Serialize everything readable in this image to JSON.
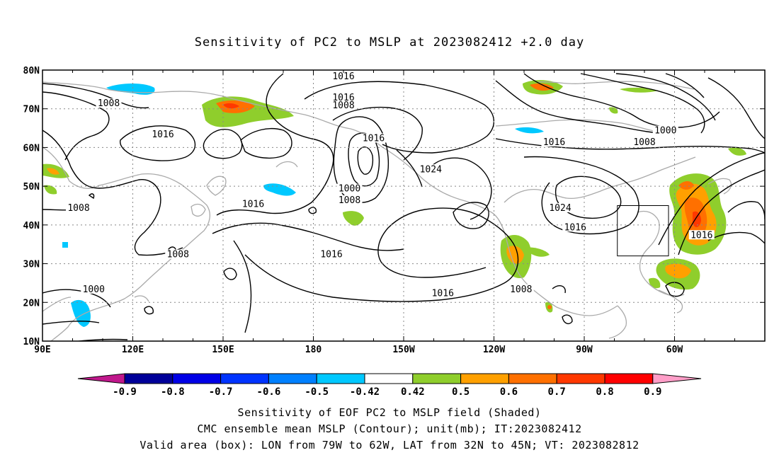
{
  "title": "Sensitivity of PC2 to MSLP at 2023082412 +2.0 day",
  "axes": {
    "lat_ticks": [
      "80N",
      "70N",
      "60N",
      "50N",
      "40N",
      "30N",
      "20N",
      "10N"
    ],
    "lon_ticks": [
      "90E",
      "120E",
      "150E",
      "180",
      "150W",
      "120W",
      "90W",
      "60W"
    ]
  },
  "contour_labels": [
    {
      "text": "1016",
      "lon": -170,
      "lat": 78
    },
    {
      "text": "1016",
      "lon": -170,
      "lat": 72.5
    },
    {
      "text": "1008",
      "lon": -170,
      "lat": 70.5
    },
    {
      "text": "1008",
      "lon": 112,
      "lat": 71
    },
    {
      "text": "1016",
      "lon": 130,
      "lat": 63
    },
    {
      "text": "1016",
      "lon": -160,
      "lat": 62
    },
    {
      "text": "1000",
      "lon": -168,
      "lat": 49
    },
    {
      "text": "1008",
      "lon": -168,
      "lat": 46
    },
    {
      "text": "1024",
      "lon": -141,
      "lat": 54
    },
    {
      "text": "1016",
      "lon": 160,
      "lat": 45
    },
    {
      "text": "1008",
      "lon": 102,
      "lat": 44
    },
    {
      "text": "1008",
      "lon": 135,
      "lat": 32
    },
    {
      "text": "1016",
      "lon": -174,
      "lat": 32
    },
    {
      "text": "1000",
      "lon": 107,
      "lat": 23
    },
    {
      "text": "1016",
      "lon": -137,
      "lat": 22
    },
    {
      "text": "1008",
      "lon": -111,
      "lat": 23
    },
    {
      "text": "1016",
      "lon": -100,
      "lat": 61
    },
    {
      "text": "1024",
      "lon": -98,
      "lat": 44
    },
    {
      "text": "1016",
      "lon": -93,
      "lat": 39
    },
    {
      "text": "1000",
      "lon": -63,
      "lat": 64
    },
    {
      "text": "1008",
      "lon": -70,
      "lat": 61
    },
    {
      "text": "1016",
      "lon": -51,
      "lat": 37
    }
  ],
  "valid_box": {
    "lon_min": -79,
    "lon_max": -62,
    "lat_min": 32,
    "lat_max": 45
  },
  "colorbar": {
    "labels": [
      "-0.9",
      "-0.8",
      "-0.7",
      "-0.6",
      "-0.5",
      "-0.42",
      "0.42",
      "0.5",
      "0.6",
      "0.7",
      "0.8",
      "0.9"
    ],
    "colors": [
      "#000099",
      "#0000e6",
      "#0033ff",
      "#0080ff",
      "#00c8ff",
      "#ffffff",
      "#8fce2c",
      "#ffa000",
      "#ff7000",
      "#ff3800",
      "#ff0000"
    ],
    "low_extend_color": "#c0188c",
    "high_extend_color": "#ff9ec8"
  },
  "caption": {
    "line1": "Sensitivity of EOF PC2 to MSLP field (Shaded)",
    "line2": "CMC ensemble mean MSLP (Contour); unit(mb); IT:2023082412",
    "line3": "Valid area (box): LON from 79W to 62W, LAT from 32N to 45N; VT: 2023082812"
  }
}
